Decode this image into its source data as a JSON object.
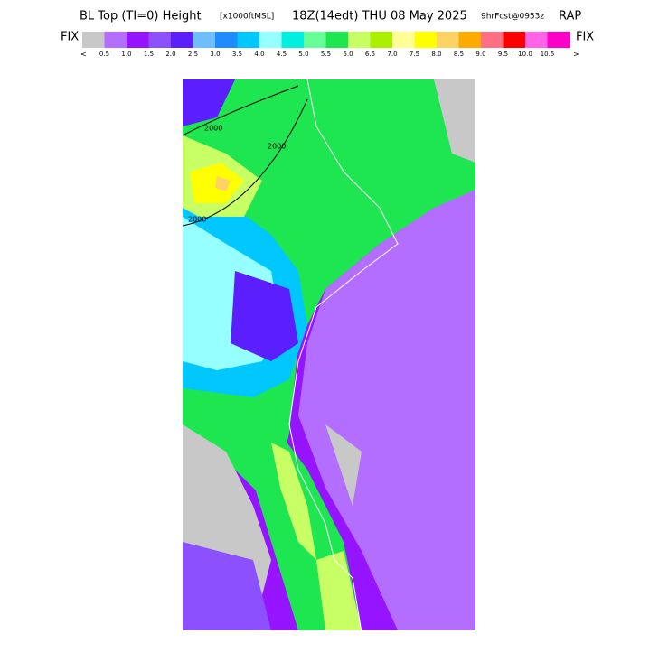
{
  "header": {
    "title_main": "BL Top (TI=0) Height",
    "title_units": "[x1000ftMSL]",
    "title_time": "18Z(14edt) THU 08 May 2025",
    "title_fcst": "9hrFcst@0953z",
    "title_model": "RAP"
  },
  "colorbar": {
    "left_label": "FIX",
    "right_label": "FIX",
    "left_arrow": "<",
    "right_arrow": ">",
    "colors": [
      "#c8c8c8",
      "#b46eff",
      "#9614ff",
      "#8c50ff",
      "#5a1eff",
      "#6ebeff",
      "#1e8cff",
      "#00c8ff",
      "#96ffff",
      "#00f0e0",
      "#64ff96",
      "#1ee650",
      "#c8ff64",
      "#aaf000",
      "#ffff96",
      "#ffff00",
      "#ffd264",
      "#ffaa00",
      "#ff6e82",
      "#ff0000",
      "#ff64e6",
      "#ff00c8"
    ],
    "labels": [
      "0.5",
      "1.0",
      "1.5",
      "2.0",
      "2.5",
      "3.0",
      "3.5",
      "4.0",
      "4.5",
      "5.0",
      "5.5",
      "6.0",
      "6.5",
      "7.0",
      "7.5",
      "8.0",
      "8.5",
      "9.0",
      "9.5",
      "10.0",
      "10.5"
    ]
  },
  "map": {
    "contour_labels": [
      "2000",
      "2000",
      "2000"
    ]
  }
}
